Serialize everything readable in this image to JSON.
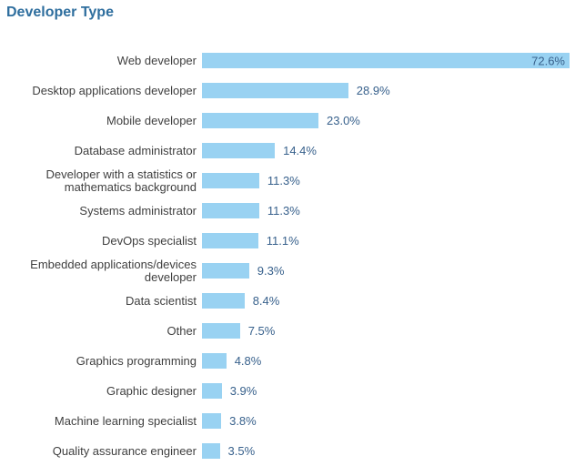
{
  "page": {
    "title": "Developer Type"
  },
  "colors": {
    "title": "#2e6e9e",
    "bar_fill": "#99d2f2",
    "value_label": "#38618c",
    "category_label": "#3f3f3f",
    "background": "#ffffff"
  },
  "chart_data": {
    "type": "bar",
    "orientation": "horizontal",
    "title": "Developer Type",
    "xlabel": "",
    "ylabel": "",
    "grid": false,
    "legend": false,
    "xlim": [
      0,
      72.6
    ],
    "value_suffix": "%",
    "categories": [
      "Web developer",
      "Desktop applications developer",
      "Mobile developer",
      "Database administrator",
      "Developer with a statistics or mathematics background",
      "Systems administrator",
      "DevOps specialist",
      "Embedded applications/devices developer",
      "Data scientist",
      "Other",
      "Graphics programming",
      "Graphic designer",
      "Machine learning specialist",
      "Quality assurance engineer"
    ],
    "values": [
      72.6,
      28.9,
      23.0,
      14.4,
      11.3,
      11.3,
      11.1,
      9.3,
      8.4,
      7.5,
      4.8,
      3.9,
      3.8,
      3.5
    ],
    "value_labels": [
      "72.6%",
      "28.9%",
      "23.0%",
      "14.4%",
      "11.3%",
      "11.3%",
      "11.1%",
      "9.3%",
      "8.4%",
      "7.5%",
      "4.8%",
      "3.9%",
      "3.8%",
      "3.5%"
    ]
  }
}
